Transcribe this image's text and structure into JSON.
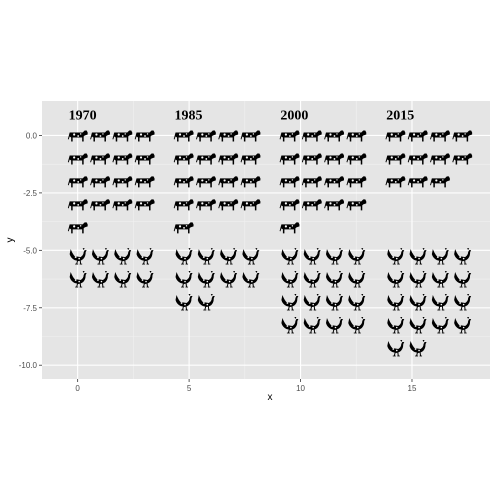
{
  "chart_data": {
    "type": "scatter",
    "title": "",
    "xlabel": "x",
    "ylabel": "y",
    "xlim": [
      -1.6,
      18.5
    ],
    "ylim": [
      -10.6,
      1.5
    ],
    "x_ticks": [
      0,
      5,
      10,
      15
    ],
    "y_ticks": [
      0.0,
      -2.5,
      -5.0,
      -7.5,
      -10.0
    ],
    "x_tick_labels": [
      "0",
      "5",
      "10",
      "15"
    ],
    "y_tick_labels": [
      "0.0",
      "-2.5",
      "-5.0",
      "-7.5",
      "-10.0"
    ],
    "grid": true,
    "legend": "none",
    "colors": {
      "panel": "#e5e5e5",
      "grid_major": "#ffffff",
      "grid_minor": "#f2f2f2",
      "glyph": "#000000"
    },
    "groups": [
      {
        "label": "1970",
        "x_offset": 0,
        "cow_count": 17,
        "chicken_count": 8
      },
      {
        "label": "1985",
        "x_offset": 4.75,
        "cow_count": 17,
        "chicken_count": 10
      },
      {
        "label": "2000",
        "x_offset": 9.5,
        "cow_count": 17,
        "chicken_count": 16
      },
      {
        "label": "2015",
        "x_offset": 14.25,
        "cow_count": 11,
        "chicken_count": 18
      }
    ],
    "grid_columns": 4,
    "cow_start_y": 0,
    "chicken_start_y": -5.25,
    "row_step": 1,
    "column_step": 1,
    "series": [
      {
        "icon": "cow-icon"
      },
      {
        "icon": "chicken-icon"
      }
    ]
  }
}
